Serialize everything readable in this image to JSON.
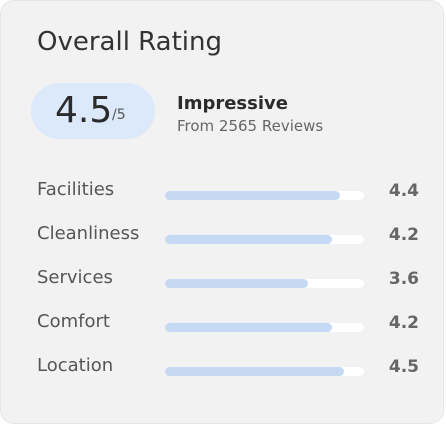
{
  "title": "Overall Rating",
  "score": "4.5",
  "score_suffix": "/5",
  "verdict": "Impressive",
  "reviews": "From 2565 Reviews",
  "ratings": {
    "xlim": [
      0,
      5
    ],
    "items": [
      {
        "name": "Facilities",
        "value": 4.4
      },
      {
        "name": "Cleanliness",
        "value": 4.2
      },
      {
        "name": "Services",
        "value": 3.6
      },
      {
        "name": "Comfort",
        "value": 4.2
      },
      {
        "name": "Location",
        "value": 4.5
      }
    ]
  }
}
